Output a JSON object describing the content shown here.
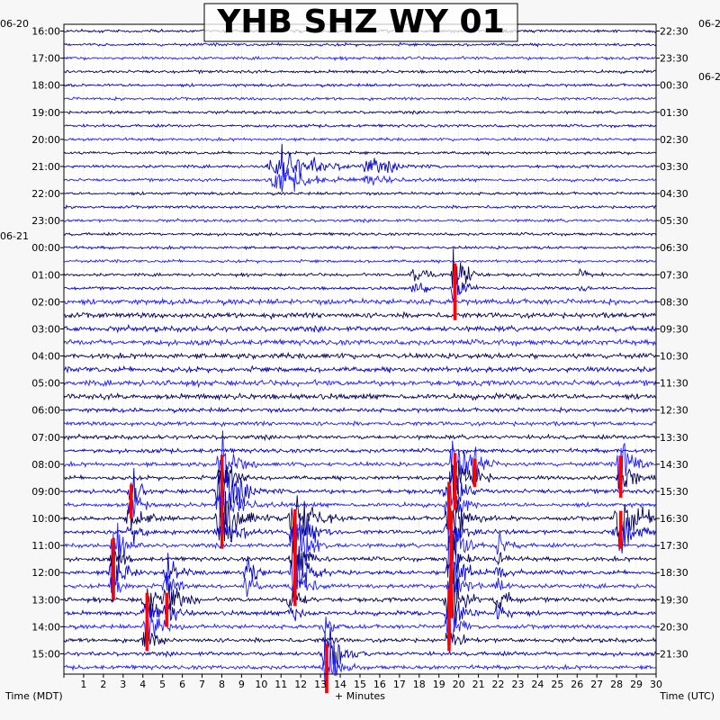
{
  "chart_data": {
    "type": "line",
    "title": "YHB SHZ WY 01",
    "xlabel": "+ Minutes",
    "left_axis_label": "Time (MDT)",
    "right_axis_label": "Time (UTC)",
    "x_ticks": [
      1,
      2,
      3,
      4,
      5,
      6,
      7,
      8,
      9,
      10,
      11,
      12,
      13,
      14,
      15,
      16,
      17,
      18,
      19,
      20,
      21,
      22,
      23,
      24,
      25,
      26,
      27,
      28,
      29,
      30
    ],
    "xlim": [
      0,
      30
    ],
    "left_date_labels": [
      "06-20",
      "06-21"
    ],
    "right_date_labels": [
      "06-2",
      "06-2"
    ],
    "left_time_labels": [
      "16:00",
      "17:00",
      "18:00",
      "19:00",
      "20:00",
      "21:00",
      "22:00",
      "23:00",
      "00:00",
      "01:00",
      "02:00",
      "03:00",
      "04:00",
      "05:00",
      "06:00",
      "07:00",
      "08:00",
      "09:00",
      "10:00",
      "11:00",
      "12:00",
      "13:00",
      "14:00",
      "15:00"
    ],
    "right_time_labels": [
      "22:30",
      "23:30",
      "00:30",
      "01:30",
      "02:30",
      "03:30",
      "04:30",
      "05:30",
      "06:30",
      "07:30",
      "08:30",
      "09:30",
      "10:30",
      "11:30",
      "12:30",
      "13:30",
      "14:30",
      "15:30",
      "16:30",
      "17:30",
      "18:30",
      "19:30",
      "20:30",
      "21:30"
    ],
    "trace_colors": [
      "#00005a",
      "#0000c8",
      "#1e1eff"
    ],
    "clip_color": "#ff0000",
    "grid": true,
    "events": [
      {
        "hour": 5,
        "minute": 11,
        "amplitude": 1.3,
        "width": 1.5
      },
      {
        "hour": 5,
        "minute": 15.5,
        "amplitude": 0.6,
        "width": 1.2
      },
      {
        "hour": 9,
        "minute": 17.8,
        "amplitude": 0.8,
        "width": 0.6
      },
      {
        "hour": 9,
        "minute": 19.8,
        "amplitude": 3.0,
        "width": 0.4
      },
      {
        "hour": 9,
        "minute": 26.2,
        "amplitude": 0.5,
        "width": 0.5
      },
      {
        "hour": 16,
        "minute": 8.0,
        "amplitude": 2.5,
        "width": 0.5
      },
      {
        "hour": 16,
        "minute": 19.8,
        "amplitude": 3.0,
        "width": 0.5
      },
      {
        "hour": 16,
        "minute": 20.8,
        "amplitude": 1.5,
        "width": 0.5
      },
      {
        "hour": 16,
        "minute": 28.2,
        "amplitude": 2.2,
        "width": 0.5
      },
      {
        "hour": 17,
        "minute": 3.4,
        "amplitude": 1.8,
        "width": 0.4
      },
      {
        "hour": 17,
        "minute": 8.0,
        "amplitude": 2.2,
        "width": 0.8
      },
      {
        "hour": 17,
        "minute": 19.5,
        "amplitude": 2.5,
        "width": 0.6
      },
      {
        "hour": 18,
        "minute": 3.4,
        "amplitude": 1.2,
        "width": 0.6
      },
      {
        "hour": 18,
        "minute": 8.0,
        "amplitude": 2.0,
        "width": 0.8
      },
      {
        "hour": 18,
        "minute": 11.7,
        "amplitude": 2.4,
        "width": 0.8
      },
      {
        "hour": 18,
        "minute": 19.6,
        "amplitude": 2.0,
        "width": 0.8
      },
      {
        "hour": 18,
        "minute": 28.2,
        "amplitude": 2.0,
        "width": 0.8
      },
      {
        "hour": 19,
        "minute": 2.5,
        "amplitude": 2.0,
        "width": 0.4
      },
      {
        "hour": 19,
        "minute": 11.7,
        "amplitude": 2.6,
        "width": 0.6
      },
      {
        "hour": 19,
        "minute": 19.6,
        "amplitude": 3.0,
        "width": 0.5
      },
      {
        "hour": 19,
        "minute": 22.0,
        "amplitude": 0.9,
        "width": 0.5
      },
      {
        "hour": 20,
        "minute": 2.5,
        "amplitude": 1.8,
        "width": 0.5
      },
      {
        "hour": 20,
        "minute": 5.2,
        "amplitude": 1.4,
        "width": 0.5
      },
      {
        "hour": 20,
        "minute": 9.3,
        "amplitude": 1.3,
        "width": 0.5
      },
      {
        "hour": 20,
        "minute": 11.7,
        "amplitude": 2.2,
        "width": 0.6
      },
      {
        "hour": 20,
        "minute": 19.6,
        "amplitude": 3.0,
        "width": 0.5
      },
      {
        "hour": 20,
        "minute": 22.0,
        "amplitude": 0.8,
        "width": 0.5
      },
      {
        "hour": 21,
        "minute": 4.2,
        "amplitude": 1.8,
        "width": 0.5
      },
      {
        "hour": 21,
        "minute": 5.2,
        "amplitude": 1.8,
        "width": 0.5
      },
      {
        "hour": 21,
        "minute": 11.5,
        "amplitude": 1.1,
        "width": 0.5
      },
      {
        "hour": 21,
        "minute": 19.5,
        "amplitude": 3.0,
        "width": 0.5
      },
      {
        "hour": 21,
        "minute": 22.0,
        "amplitude": 1.0,
        "width": 0.5
      },
      {
        "hour": 22,
        "minute": 4.2,
        "amplitude": 1.6,
        "width": 0.5
      },
      {
        "hour": 22,
        "minute": 19.5,
        "amplitude": 1.6,
        "width": 0.5
      },
      {
        "hour": 22,
        "minute": 13.3,
        "amplitude": 0.6,
        "width": 0.5
      },
      {
        "hour": 23,
        "minute": 13.3,
        "amplitude": 2.6,
        "width": 0.5
      }
    ]
  }
}
